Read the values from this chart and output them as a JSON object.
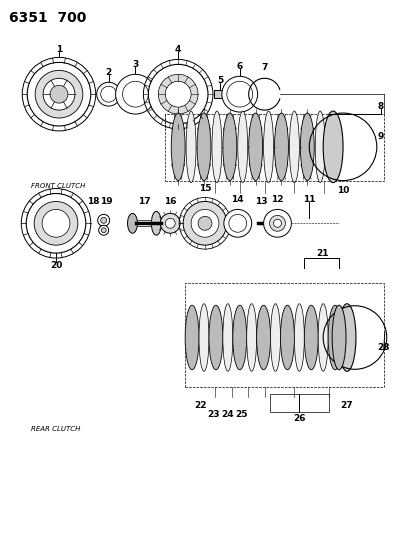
{
  "title": "6351  700",
  "bg_color": "#ffffff",
  "line_color": "#000000",
  "front_clutch_label": "FRONT CLUTCH",
  "rear_clutch_label": "REAR CLUTCH",
  "title_fontsize": 10,
  "label_fontsize": 5.0,
  "number_fontsize": 6.5,
  "figsize": [
    4.08,
    5.33
  ],
  "dpi": 100
}
